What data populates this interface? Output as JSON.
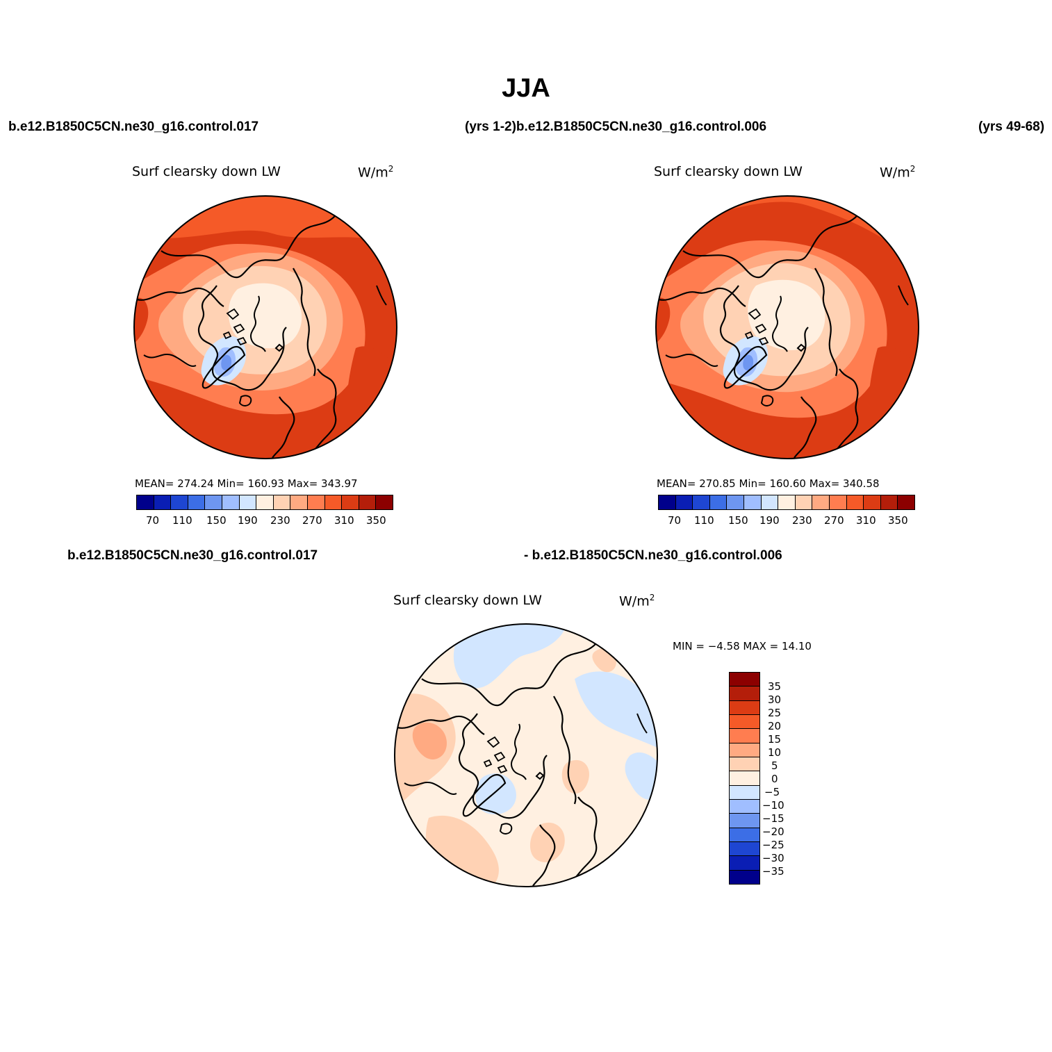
{
  "main_title": "JJA",
  "case_labels": {
    "top_left": "b.e12.B1850C5CN.ne30_g16.control.017",
    "top_middle": "(yrs 1-2)b.e12.B1850C5CN.ne30_g16.control.006",
    "top_right": "(yrs 49-68)",
    "bottom_left": "b.e12.B1850C5CN.ne30_g16.control.017",
    "bottom_right": "- b.e12.B1850C5CN.ne30_g16.control.006"
  },
  "panels": [
    {
      "variable": "Surf clearsky down LW",
      "units": "W/m",
      "units_sup": "2",
      "stats": "MEAN= 274.24   Min= 160.93   Max= 343.97",
      "colorbar_labels": [
        "70",
        "110",
        "150",
        "190",
        "230",
        "270",
        "310",
        "350"
      ]
    },
    {
      "variable": "Surf clearsky down LW",
      "units": "W/m",
      "units_sup": "2",
      "stats": "MEAN= 270.85   Min= 160.60   Max= 340.58",
      "colorbar_labels": [
        "70",
        "110",
        "150",
        "190",
        "230",
        "270",
        "310",
        "350"
      ]
    },
    {
      "variable": "Surf clearsky down LW",
      "units": "W/m",
      "units_sup": "2",
      "stats": "MIN =   −4.58  MAX =   14.10",
      "colorbar_labels": [
        "35",
        "30",
        "25",
        "20",
        "15",
        "10",
        "5",
        "0",
        "−5",
        "−10",
        "−15",
        "−20",
        "−25",
        "−30",
        "−35"
      ]
    }
  ],
  "colors": {
    "field_scale": [
      "#00008b",
      "#0a1eb4",
      "#1e46d2",
      "#3c6ee6",
      "#6e96f0",
      "#a0beff",
      "#d2e6ff",
      "#fff0e1",
      "#ffd2b4",
      "#ffaa82",
      "#ff7d50",
      "#f55a28",
      "#dc3c14",
      "#b41e0a",
      "#8c0000"
    ],
    "diff_scale_top_to_bottom": [
      "#8c0000",
      "#b41e0a",
      "#dc3c14",
      "#f55a28",
      "#ff7d50",
      "#ffaa82",
      "#ffd2b4",
      "#fff0e1",
      "#d2e6ff",
      "#a0beff",
      "#6e96f0",
      "#3c6ee6",
      "#1e46d2",
      "#0a1eb4",
      "#00008b"
    ]
  }
}
